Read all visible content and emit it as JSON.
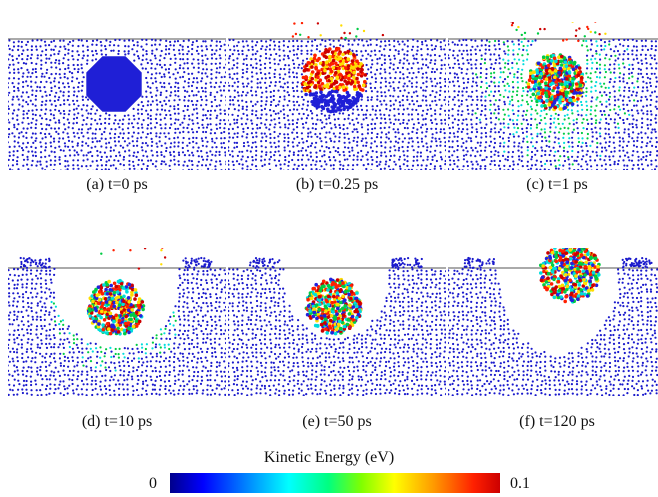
{
  "figure": {
    "panels": [
      {
        "caption": "(a) t=0 ps"
      },
      {
        "caption": "(b) t=0.25 ps"
      },
      {
        "caption": "(c) t=1 ps"
      },
      {
        "caption": "(d) t=10 ps"
      },
      {
        "caption": "(e) t=50 ps"
      },
      {
        "caption": "(f) t=120 ps"
      }
    ],
    "colorbar": {
      "title": "Kinetic Energy (eV)",
      "min_label": "0",
      "max_label": "0.1"
    }
  },
  "colors": {
    "atom_blue": "#1a1acc",
    "cluster_blue": "#1f1fd6",
    "reference_line": "#555555",
    "hot": [
      "#ff2000",
      "#cc0000",
      "#ffdd00",
      "#00cc44",
      "#00dddd",
      "#2222dd"
    ]
  }
}
